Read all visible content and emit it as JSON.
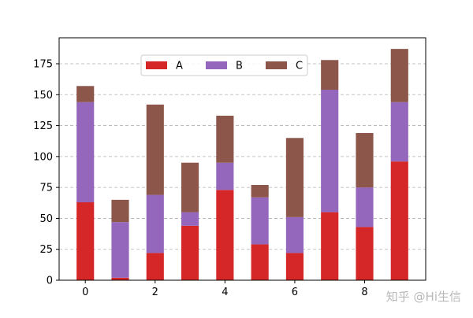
{
  "chart_data": {
    "type": "bar",
    "stacked": true,
    "x": [
      0,
      1,
      2,
      3,
      4,
      5,
      6,
      7,
      8,
      9
    ],
    "series": [
      {
        "name": "A",
        "color": "#d62728",
        "values": [
          63,
          2,
          22,
          44,
          73,
          29,
          22,
          55,
          43,
          96
        ]
      },
      {
        "name": "B",
        "color": "#9467bd",
        "values": [
          81,
          45,
          47,
          11,
          22,
          38,
          29,
          99,
          32,
          48
        ]
      },
      {
        "name": "C",
        "color": "#8c564b",
        "values": [
          13,
          18,
          73,
          40,
          38,
          10,
          64,
          24,
          44,
          43
        ]
      }
    ],
    "x_ticks": [
      "0",
      "2",
      "4",
      "6",
      "8"
    ],
    "y_ticks": [
      "0",
      "25",
      "50",
      "75",
      "100",
      "125",
      "150",
      "175"
    ],
    "xlim": [
      -0.75,
      9.75
    ],
    "ylim": [
      0,
      196
    ],
    "grid": "y-dashed",
    "legend_position": "upper-center",
    "legend_columns": 3,
    "title": "",
    "xlabel": "",
    "ylabel": ""
  },
  "watermark": "知乎 @Hi生信"
}
